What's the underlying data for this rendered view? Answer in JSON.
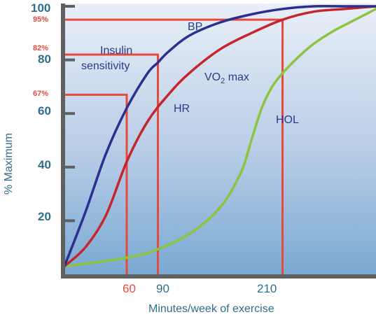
{
  "chart_data": {
    "type": "line",
    "title": "",
    "xlabel": "Minutes/week of exercise",
    "ylabel": "% Maximum",
    "ylim": [
      0,
      100
    ],
    "y_ticks": [
      "20",
      "40",
      "60",
      "80",
      "100"
    ],
    "x_ticks": [
      "60",
      "90",
      "210"
    ],
    "x_tick_values": [
      60,
      90,
      210
    ],
    "percent_labels": [
      "67%",
      "82%",
      "95%"
    ],
    "reference_lines": [
      {
        "x": 60,
        "y": 67,
        "label": "67%"
      },
      {
        "x": 90,
        "y": 82,
        "label": "82%"
      },
      {
        "x": 210,
        "y": 95,
        "label": "95%"
      }
    ],
    "series": [
      {
        "name": "BP",
        "color": "#2b2f8f",
        "x": [
          0,
          20,
          40,
          60,
          80,
          90,
          100,
          120,
          150,
          180,
          210,
          240,
          270,
          300
        ],
        "y": [
          3,
          23,
          45,
          62,
          75,
          79,
          83,
          89,
          94,
          97,
          99,
          100,
          100,
          100
        ]
      },
      {
        "name": "HR",
        "color": "#c5252c",
        "x": [
          0,
          20,
          40,
          60,
          80,
          100,
          120,
          150,
          180,
          210,
          240,
          270,
          300
        ],
        "y": [
          3,
          10,
          22,
          42,
          57,
          67,
          75,
          84,
          90,
          95,
          98,
          99,
          100
        ]
      },
      {
        "name": "VO2 max",
        "color": "#8dc43f",
        "x": [
          0,
          40,
          80,
          120,
          150,
          170,
          180,
          190,
          200,
          210,
          225,
          240,
          260,
          280,
          300
        ],
        "y": [
          3,
          5,
          8,
          15,
          25,
          38,
          50,
          62,
          70,
          75,
          81,
          86,
          91,
          95,
          99
        ]
      }
    ],
    "series_labels": {
      "bp": "BP",
      "insulin_1": "Insulin",
      "insulin_2": "sensitivity",
      "hr": "HR",
      "vo2_main": "VO",
      "vo2_sub": "2",
      "vo2_tail": " max",
      "hol": "HOL"
    },
    "colors": {
      "axis": "#606060",
      "tick_text": "#2d6f8c",
      "reference": "#e64a3c",
      "bg_top": "#e9eef8",
      "bg_bottom": "#7aa9d3"
    }
  }
}
